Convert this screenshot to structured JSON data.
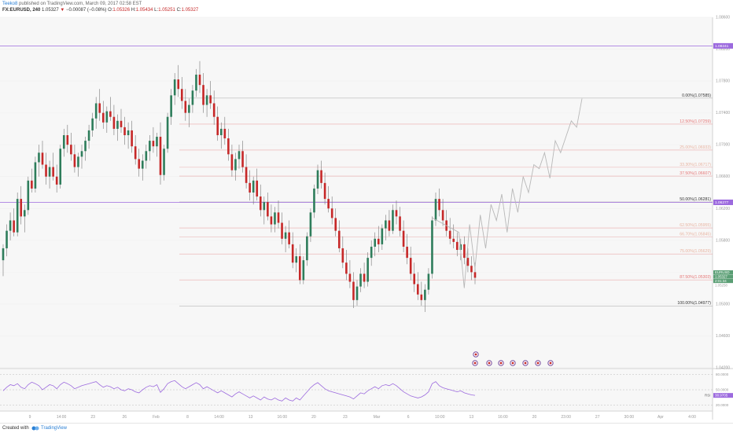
{
  "header": {
    "author": "Teeko8",
    "published": "published on TradingView.com, March 09, 2017 02:58 EST",
    "symbol": "FX:EURUSD, 240",
    "last": "1.05327",
    "arrow": "▼",
    "change": "−0.00087 (−0.08%)",
    "o_label": "O:",
    "o_value": "1.05326",
    "h_label": "H:",
    "h_value": "1.05434",
    "l_label": "L:",
    "l_value": "1.05251",
    "c_label": "C:",
    "c_value": "1.05327"
  },
  "colors": {
    "up": "#2e7d5b",
    "down": "#c62828",
    "fib_line": "#e8a3a3",
    "fib_label": "#e57373",
    "purple": "#9c6ade",
    "forecast": "#b8b8b8",
    "rsi": "#9c6ade",
    "price_tag": "#5a9e74",
    "grid": "#f0f0f0"
  },
  "chart_data": {
    "type": "candlestick",
    "series": [
      {
        "name": "FX:EURUSD, 240"
      }
    ],
    "ylim": [
      1.042,
      1.086
    ],
    "price_axis_ticks": [
      "1.08600",
      "1.08200",
      "1.07800",
      "1.07400",
      "1.07000",
      "1.06600",
      "1.06200",
      "1.05800",
      "1.05400",
      "1.05000",
      "1.04600",
      "1.04200"
    ],
    "time_axis_ticks": [
      "9",
      "14:00",
      "23",
      "26",
      "Feb",
      "8",
      "14:00",
      "13",
      "16:00",
      "20",
      "23",
      "Mar",
      "6",
      "10:00",
      "13",
      "16:00",
      "20",
      "23:00",
      "27",
      "30:00",
      "Apr",
      "4:00"
    ],
    "fib_levels": [
      {
        "label": "0.00%(1.07585)",
        "price": 1.07585
      },
      {
        "label": "12.50%(1.07259)",
        "price": 1.07259
      },
      {
        "label": "25.00%(1.06933)",
        "price": 1.06933
      },
      {
        "label": "33.30%(1.06717)",
        "price": 1.06717
      },
      {
        "label": "37.50%(1.06607)",
        "price": 1.06607
      },
      {
        "label": "50.00%(1.06281)",
        "price": 1.06281
      },
      {
        "label": "62.50%(1.05955)",
        "price": 1.05955
      },
      {
        "label": "66.70%(1.05845)",
        "price": 1.05845
      },
      {
        "label": "75.00%(1.05629)",
        "price": 1.05629
      },
      {
        "label": "87.50%(1.05303)",
        "price": 1.05303
      },
      {
        "label": "100.00%(1.04977)",
        "price": 1.04977
      }
    ],
    "horizontal_lines": [
      {
        "label": "1.08241",
        "price": 1.08241
      },
      {
        "label": "1.06277",
        "price": 1.06277
      }
    ],
    "last_price_tags": [
      "EURUSD",
      "1.05327",
      "2:01:34",
      "1.05258"
    ],
    "candles": [
      [
        1.0555,
        1.0575,
        1.0535,
        1.057
      ],
      [
        1.057,
        1.06,
        1.056,
        1.0592
      ],
      [
        1.0592,
        1.0615,
        1.058,
        1.0605
      ],
      [
        1.0605,
        1.062,
        1.0585,
        1.059
      ],
      [
        1.059,
        1.064,
        1.0585,
        1.0632
      ],
      [
        1.0632,
        1.0648,
        1.06,
        1.061
      ],
      [
        1.061,
        1.0625,
        1.059,
        1.0618
      ],
      [
        1.0618,
        1.066,
        1.0612,
        1.0655
      ],
      [
        1.0655,
        1.067,
        1.064,
        1.0645
      ],
      [
        1.0645,
        1.0685,
        1.064,
        1.0678
      ],
      [
        1.0678,
        1.07,
        1.066,
        1.069
      ],
      [
        1.069,
        1.0705,
        1.067,
        1.0675
      ],
      [
        1.0675,
        1.069,
        1.065,
        1.066
      ],
      [
        1.066,
        1.068,
        1.0645,
        1.0672
      ],
      [
        1.0672,
        1.069,
        1.0655,
        1.066
      ],
      [
        1.066,
        1.0675,
        1.064,
        1.065
      ],
      [
        1.065,
        1.07,
        1.0645,
        1.0695
      ],
      [
        1.0695,
        1.072,
        1.0685,
        1.0712
      ],
      [
        1.0712,
        1.0725,
        1.069,
        1.07
      ],
      [
        1.07,
        1.0715,
        1.068,
        1.0688
      ],
      [
        1.0688,
        1.07,
        1.0665,
        1.0672
      ],
      [
        1.0672,
        1.069,
        1.066,
        1.0685
      ],
      [
        1.0685,
        1.07,
        1.067,
        1.0692
      ],
      [
        1.0692,
        1.071,
        1.068,
        1.0705
      ],
      [
        1.0705,
        1.0725,
        1.0695,
        1.0718
      ],
      [
        1.0718,
        1.074,
        1.071,
        1.0733
      ],
      [
        1.0733,
        1.076,
        1.072,
        1.0752
      ],
      [
        1.0752,
        1.077,
        1.073,
        1.074
      ],
      [
        1.074,
        1.0755,
        1.072,
        1.0728
      ],
      [
        1.0728,
        1.0748,
        1.0715,
        1.0742
      ],
      [
        1.0742,
        1.076,
        1.073,
        1.0735
      ],
      [
        1.0735,
        1.075,
        1.0712,
        1.072
      ],
      [
        1.072,
        1.0738,
        1.0705,
        1.073
      ],
      [
        1.073,
        1.0745,
        1.0715,
        1.0722
      ],
      [
        1.0722,
        1.0735,
        1.07,
        1.0712
      ],
      [
        1.0712,
        1.0728,
        1.0695,
        1.0718
      ],
      [
        1.0718,
        1.073,
        1.069,
        1.0698
      ],
      [
        1.0698,
        1.0712,
        1.0675,
        1.0682
      ],
      [
        1.0682,
        1.0695,
        1.066,
        1.067
      ],
      [
        1.067,
        1.0688,
        1.0655,
        1.068
      ],
      [
        1.068,
        1.07,
        1.067,
        1.0692
      ],
      [
        1.0692,
        1.0712,
        1.068,
        1.0705
      ],
      [
        1.0705,
        1.0722,
        1.069,
        1.0698
      ],
      [
        1.0698,
        1.0715,
        1.0685,
        1.071
      ],
      [
        1.071,
        1.0728,
        1.065,
        1.0662
      ],
      [
        1.0662,
        1.07,
        1.0655,
        1.0695
      ],
      [
        1.0695,
        1.074,
        1.069,
        1.0735
      ],
      [
        1.0735,
        1.077,
        1.0725,
        1.0762
      ],
      [
        1.0762,
        1.079,
        1.075,
        1.0782
      ],
      [
        1.0782,
        1.08,
        1.076,
        1.077
      ],
      [
        1.077,
        1.0785,
        1.0745,
        1.0755
      ],
      [
        1.0755,
        1.077,
        1.073,
        1.074
      ],
      [
        1.074,
        1.0758,
        1.0722,
        1.075
      ],
      [
        1.075,
        1.0775,
        1.074,
        1.0768
      ],
      [
        1.0768,
        1.0795,
        1.076,
        1.0788
      ],
      [
        1.0788,
        1.0805,
        1.0765,
        1.0775
      ],
      [
        1.0775,
        1.079,
        1.074,
        1.075
      ],
      [
        1.075,
        1.077,
        1.0735,
        1.0762
      ],
      [
        1.0762,
        1.078,
        1.0745,
        1.0752
      ],
      [
        1.0752,
        1.0768,
        1.0725,
        1.0735
      ],
      [
        1.0735,
        1.0748,
        1.0705,
        1.0712
      ],
      [
        1.0712,
        1.0728,
        1.0695,
        1.072
      ],
      [
        1.072,
        1.0735,
        1.07,
        1.0708
      ],
      [
        1.0708,
        1.072,
        1.068,
        1.0688
      ],
      [
        1.0688,
        1.07,
        1.066,
        1.0668
      ],
      [
        1.0668,
        1.069,
        1.0655,
        1.0682
      ],
      [
        1.0682,
        1.07,
        1.067,
        1.0692
      ],
      [
        1.0692,
        1.0705,
        1.0665,
        1.0672
      ],
      [
        1.0672,
        1.0688,
        1.0645,
        1.0652
      ],
      [
        1.0652,
        1.0668,
        1.063,
        1.064
      ],
      [
        1.064,
        1.066,
        1.0625,
        1.0655
      ],
      [
        1.0655,
        1.067,
        1.063,
        1.0635
      ],
      [
        1.0635,
        1.065,
        1.061,
        1.0618
      ],
      [
        1.0618,
        1.0635,
        1.06,
        1.0628
      ],
      [
        1.0628,
        1.064,
        1.0605,
        1.061
      ],
      [
        1.061,
        1.0625,
        1.059,
        1.06
      ],
      [
        1.06,
        1.0622,
        1.059,
        1.0615
      ],
      [
        1.0615,
        1.063,
        1.0595,
        1.0602
      ],
      [
        1.0602,
        1.0615,
        1.0575,
        1.0582
      ],
      [
        1.0582,
        1.0598,
        1.0565,
        1.059
      ],
      [
        1.059,
        1.0605,
        1.057,
        1.0575
      ],
      [
        1.0575,
        1.059,
        1.0545,
        1.0552
      ],
      [
        1.0552,
        1.057,
        1.054,
        1.056
      ],
      [
        1.056,
        1.0575,
        1.0525,
        1.053
      ],
      [
        1.053,
        1.056,
        1.0525,
        1.0555
      ],
      [
        1.0555,
        1.059,
        1.0548,
        1.0585
      ],
      [
        1.0585,
        1.062,
        1.0578,
        1.0615
      ],
      [
        1.0615,
        1.065,
        1.0608,
        1.0645
      ],
      [
        1.0645,
        1.0675,
        1.0638,
        1.0668
      ],
      [
        1.0668,
        1.068,
        1.0645,
        1.0652
      ],
      [
        1.0652,
        1.0665,
        1.0625,
        1.0632
      ],
      [
        1.0632,
        1.0648,
        1.0615,
        1.062
      ],
      [
        1.062,
        1.0635,
        1.06,
        1.0608
      ],
      [
        1.0608,
        1.062,
        1.0585,
        1.0592
      ],
      [
        1.0592,
        1.0605,
        1.0565,
        1.057
      ],
      [
        1.057,
        1.0585,
        1.0545,
        1.0552
      ],
      [
        1.0552,
        1.0568,
        1.053,
        1.0538
      ],
      [
        1.0538,
        1.0555,
        1.052,
        1.0528
      ],
      [
        1.0528,
        1.054,
        1.0495,
        1.0505
      ],
      [
        1.0505,
        1.053,
        1.0498,
        1.0522
      ],
      [
        1.0522,
        1.0545,
        1.0515,
        1.0538
      ],
      [
        1.0538,
        1.0552,
        1.052,
        1.0528
      ],
      [
        1.0528,
        1.0565,
        1.0522,
        1.0558
      ],
      [
        1.0558,
        1.058,
        1.0548,
        1.0572
      ],
      [
        1.0572,
        1.059,
        1.056,
        1.0582
      ],
      [
        1.0582,
        1.0598,
        1.0565,
        1.0575
      ],
      [
        1.0575,
        1.06,
        1.0568,
        1.0595
      ],
      [
        1.0595,
        1.0612,
        1.058,
        1.0605
      ],
      [
        1.0605,
        1.0618,
        1.0585,
        1.0592
      ],
      [
        1.0592,
        1.0625,
        1.0588,
        1.0618
      ],
      [
        1.0618,
        1.063,
        1.06,
        1.061
      ],
      [
        1.061,
        1.0622,
        1.0585,
        1.0592
      ],
      [
        1.0592,
        1.0605,
        1.0565,
        1.0572
      ],
      [
        1.0572,
        1.0588,
        1.055,
        1.0558
      ],
      [
        1.0558,
        1.0572,
        1.053,
        1.0538
      ],
      [
        1.0538,
        1.0552,
        1.0515,
        1.0525
      ],
      [
        1.0525,
        1.054,
        1.0505,
        1.0512
      ],
      [
        1.0512,
        1.0528,
        1.0498,
        1.0505
      ],
      [
        1.0505,
        1.0525,
        1.049,
        1.0518
      ],
      [
        1.0518,
        1.0545,
        1.0512,
        1.0538
      ],
      [
        1.0538,
        1.061,
        1.0532,
        1.0605
      ],
      [
        1.0605,
        1.064,
        1.0598,
        1.0632
      ],
      [
        1.0632,
        1.0645,
        1.061,
        1.0618
      ],
      [
        1.0618,
        1.0632,
        1.0598,
        1.0605
      ],
      [
        1.0605,
        1.0618,
        1.0585,
        1.0592
      ],
      [
        1.0592,
        1.0608,
        1.0575,
        1.0582
      ],
      [
        1.0582,
        1.06,
        1.057,
        1.0578
      ],
      [
        1.0578,
        1.059,
        1.056,
        1.0568
      ],
      [
        1.0568,
        1.0582,
        1.0555,
        1.0575
      ],
      [
        1.0575,
        1.0585,
        1.055,
        1.0558
      ],
      [
        1.0558,
        1.057,
        1.054,
        1.0548
      ],
      [
        1.0548,
        1.056,
        1.053,
        1.054
      ],
      [
        1.054,
        1.0552,
        1.0525,
        1.0533
      ]
    ],
    "forecast_path": [
      [
        1.059,
        1.052
      ],
      [
        1.06,
        1.0545
      ],
      [
        1.0612,
        1.057
      ],
      [
        1.0625,
        1.0605
      ],
      [
        1.0638,
        1.059
      ],
      [
        1.0645,
        1.0615
      ],
      [
        1.066,
        1.064
      ],
      [
        1.0675,
        1.067
      ],
      [
        1.069,
        1.0658
      ],
      [
        1.0705,
        1.069
      ],
      [
        1.071,
        1.073
      ],
      [
        1.0722,
        1.0758
      ]
    ],
    "rsi": {
      "label": "RSI",
      "current": "38.9705",
      "ticks": [
        "80.0000",
        "50.0000",
        "20.0000"
      ],
      "ylim": [
        10,
        90
      ],
      "values": [
        48,
        55,
        60,
        58,
        62,
        55,
        52,
        60,
        65,
        62,
        58,
        50,
        55,
        60,
        58,
        52,
        60,
        65,
        62,
        58,
        52,
        55,
        58,
        60,
        62,
        64,
        66,
        60,
        55,
        58,
        56,
        52,
        55,
        50,
        48,
        52,
        50,
        46,
        44,
        50,
        55,
        58,
        56,
        60,
        45,
        52,
        62,
        66,
        68,
        62,
        56,
        52,
        56,
        60,
        64,
        60,
        52,
        56,
        52,
        48,
        44,
        48,
        44,
        40,
        36,
        42,
        46,
        42,
        38,
        34,
        38,
        34,
        30,
        36,
        32,
        30,
        34,
        30,
        28,
        34,
        30,
        28,
        34,
        30,
        38,
        46,
        54,
        60,
        64,
        58,
        52,
        48,
        46,
        44,
        42,
        40,
        38,
        36,
        32,
        38,
        44,
        42,
        48,
        52,
        56,
        52,
        58,
        60,
        58,
        62,
        58,
        52,
        46,
        42,
        38,
        36,
        34,
        36,
        40,
        46,
        62,
        66,
        58,
        54,
        52,
        50,
        48,
        46,
        48,
        44,
        42,
        40,
        39
      ]
    }
  }
}
